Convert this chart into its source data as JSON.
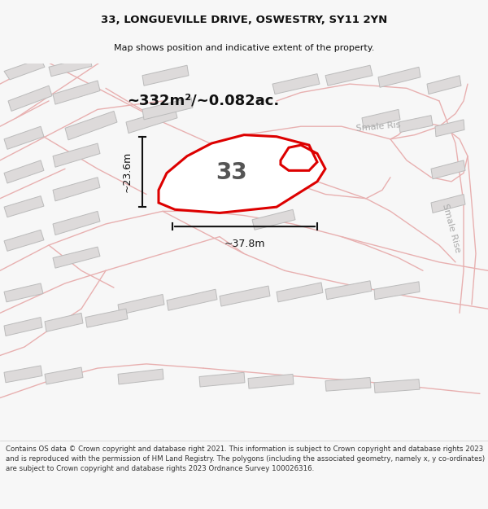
{
  "title_line1": "33, LONGUEVILLE DRIVE, OSWESTRY, SY11 2YN",
  "title_line2": "Map shows position and indicative extent of the property.",
  "area_label": "~332m²/~0.082ac.",
  "plot_number": "33",
  "dim_width": "~37.8m",
  "dim_height": "~23.6m",
  "street_label_top": "Smale Ris",
  "street_label_bottom": "Smale Rise",
  "footer_text": "Contains OS data © Crown copyright and database right 2021. This information is subject to Crown copyright and database rights 2023 and is reproduced with the permission of HM Land Registry. The polygons (including the associated geometry, namely x, y co-ordinates) are subject to Crown copyright and database rights 2023 Ordnance Survey 100026316.",
  "bg_color": "#f7f7f7",
  "map_bg": "#f5f3f3",
  "plot_fill": "#ffffff",
  "plot_outline_color": "#dd0000",
  "road_color": "#e8b0b0",
  "road_lw": 1.0,
  "building_color": "#dddada",
  "building_edge_color": "#bbbbbb",
  "text_color": "#111111",
  "dim_color": "#111111",
  "street_color": "#aaaaaa",
  "footer_bg": "#ffffff",
  "title_fontsize": 9.5,
  "subtitle_fontsize": 8.0,
  "area_fontsize": 13,
  "plotnum_fontsize": 20,
  "street_fontsize": 8,
  "dim_fontsize": 9,
  "footer_fontsize": 6.2
}
